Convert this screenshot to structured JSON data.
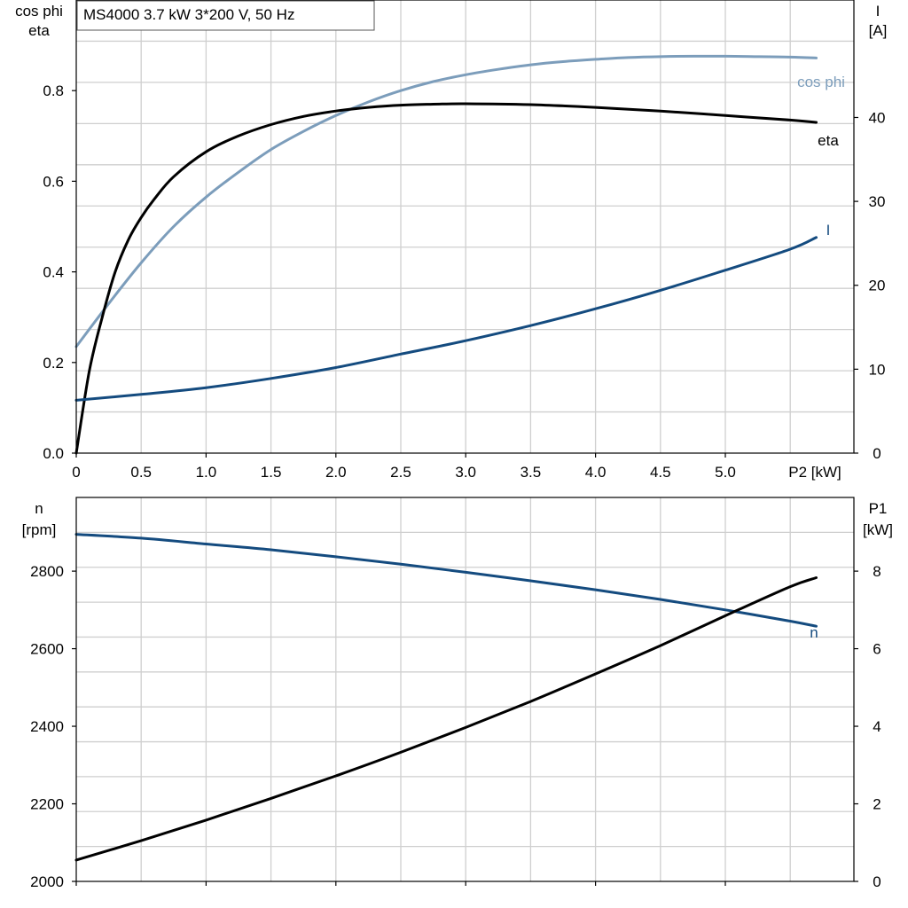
{
  "chart_data": [
    {
      "type": "line",
      "title": "MS4000   3.7 kW   3*200 V, 50 Hz",
      "xlabel": "P2 [kW]",
      "x_ticks": [
        "0",
        "0.5",
        "1.0",
        "1.5",
        "2.0",
        "2.5",
        "3.0",
        "3.5",
        "4.0",
        "4.5",
        "5.0"
      ],
      "xlim": [
        0,
        6.0
      ],
      "ylabel_left": [
        "cos phi",
        "eta"
      ],
      "ylim_left": [
        0,
        1.0
      ],
      "y_ticks_left": [
        "0.0",
        "0.2",
        "0.4",
        "0.6",
        "0.8"
      ],
      "ylabel_right": [
        "I",
        "[A]"
      ],
      "ylim_right": [
        0,
        54
      ],
      "y_ticks_right": [
        "0",
        "10",
        "20",
        "30",
        "40"
      ],
      "grid": true,
      "series": [
        {
          "name": "cos phi",
          "axis": "left",
          "color": "#7c9dbb",
          "x": [
            0,
            0.25,
            0.5,
            0.75,
            1.0,
            1.25,
            1.5,
            1.75,
            2.0,
            2.25,
            2.5,
            2.75,
            3.0,
            3.25,
            3.5,
            3.75,
            4.0,
            4.25,
            4.5,
            4.75,
            5.0,
            5.25,
            5.5,
            5.7
          ],
          "values": [
            0.235,
            0.33,
            0.42,
            0.5,
            0.565,
            0.62,
            0.67,
            0.71,
            0.745,
            0.775,
            0.8,
            0.82,
            0.835,
            0.847,
            0.857,
            0.864,
            0.869,
            0.873,
            0.875,
            0.876,
            0.876,
            0.875,
            0.874,
            0.872
          ]
        },
        {
          "name": "eta",
          "axis": "left",
          "color": "#000000",
          "x": [
            0,
            0.1,
            0.2,
            0.3,
            0.4,
            0.5,
            0.6,
            0.75,
            1.0,
            1.25,
            1.5,
            1.75,
            2.0,
            2.25,
            2.5,
            2.75,
            3.0,
            3.5,
            4.0,
            4.5,
            5.0,
            5.5,
            5.7
          ],
          "values": [
            0.0,
            0.18,
            0.3,
            0.4,
            0.47,
            0.52,
            0.56,
            0.61,
            0.665,
            0.7,
            0.725,
            0.743,
            0.755,
            0.763,
            0.768,
            0.77,
            0.771,
            0.769,
            0.763,
            0.755,
            0.745,
            0.735,
            0.73
          ]
        },
        {
          "name": "I",
          "axis": "right",
          "color": "#144b7f",
          "x": [
            0,
            0.5,
            1.0,
            1.5,
            2.0,
            2.5,
            3.0,
            3.5,
            4.0,
            4.5,
            5.0,
            5.5,
            5.7
          ],
          "values": [
            6.3,
            7.0,
            7.8,
            8.9,
            10.2,
            11.8,
            13.4,
            15.2,
            17.2,
            19.4,
            21.8,
            24.3,
            25.7
          ]
        }
      ]
    },
    {
      "type": "line",
      "xlim": [
        0,
        6.0
      ],
      "ylabel_left": [
        "n",
        "[rpm]"
      ],
      "ylim_left": [
        2000,
        2990
      ],
      "y_ticks_left": [
        "2000",
        "2200",
        "2400",
        "2600",
        "2800"
      ],
      "ylabel_right": [
        "P1",
        "[kW]"
      ],
      "ylim_right": [
        0,
        9.9
      ],
      "y_ticks_right": [
        "0",
        "2",
        "4",
        "6",
        "8"
      ],
      "grid": true,
      "series": [
        {
          "name": "n",
          "axis": "left",
          "color": "#144b7f",
          "x": [
            0,
            0.5,
            1.0,
            1.5,
            2.0,
            2.5,
            3.0,
            3.5,
            4.0,
            4.5,
            5.0,
            5.5,
            5.7
          ],
          "values": [
            2895,
            2885,
            2870,
            2855,
            2837,
            2818,
            2797,
            2775,
            2752,
            2727,
            2700,
            2671,
            2658
          ]
        },
        {
          "name": "",
          "axis": "right",
          "color": "#000000",
          "x": [
            0,
            0.5,
            1.0,
            1.5,
            2.0,
            2.5,
            3.0,
            3.5,
            4.0,
            4.5,
            5.0,
            5.5,
            5.7
          ],
          "values": [
            0.55,
            1.05,
            1.58,
            2.14,
            2.72,
            3.33,
            3.97,
            4.64,
            5.35,
            6.08,
            6.85,
            7.6,
            7.83
          ]
        }
      ]
    }
  ]
}
